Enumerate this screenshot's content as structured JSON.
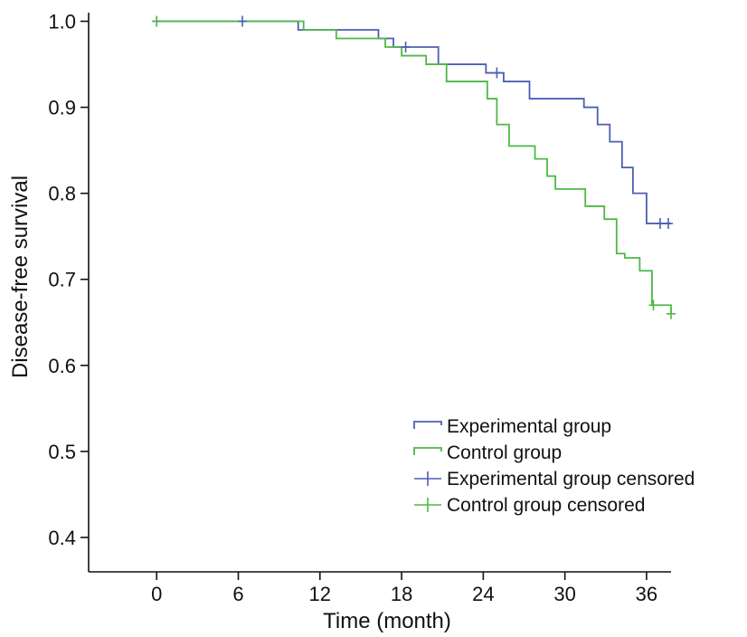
{
  "chart_data": {
    "type": "line",
    "subtype": "kaplan-meier step",
    "title": "",
    "xlabel": "Time (month)",
    "ylabel": "Disease-free survival",
    "xlim": [
      -5,
      37.8
    ],
    "ylim": [
      0.36,
      1.01
    ],
    "xticks": [
      0,
      6,
      12,
      18,
      24,
      30,
      36
    ],
    "yticks": [
      0.4,
      0.5,
      0.6,
      0.7,
      0.8,
      0.9,
      1.0
    ],
    "xtick_labels": [
      "0",
      "6",
      "12",
      "18",
      "24",
      "30",
      "36"
    ],
    "ytick_labels": [
      "0.4",
      "0.5",
      "0.6",
      "0.7",
      "0.8",
      "0.9",
      "1.0"
    ],
    "grid": false,
    "legend_position": "bottom-right",
    "series": [
      {
        "name": "Experimental group",
        "color": "#4c5fb5",
        "x": [
          0,
          10.4,
          16.3,
          17.4,
          20.7,
          24.2,
          25.5,
          27.4,
          31.4,
          32.4,
          33.3,
          34.2,
          35.0,
          36.0,
          37.8
        ],
        "y": [
          1.0,
          0.99,
          0.98,
          0.97,
          0.95,
          0.94,
          0.93,
          0.91,
          0.9,
          0.88,
          0.86,
          0.83,
          0.8,
          0.765,
          0.765
        ],
        "censored": {
          "x": [
            0,
            6.3,
            18.3,
            25.0,
            37.0,
            37.6
          ],
          "y": [
            1.0,
            1.0,
            0.97,
            0.94,
            0.765,
            0.765
          ]
        }
      },
      {
        "name": "Control group",
        "color": "#4fb848",
        "x": [
          0,
          10.8,
          13.2,
          16.8,
          18.0,
          19.8,
          21.3,
          24.3,
          25.0,
          25.9,
          27.8,
          28.7,
          29.3,
          31.5,
          32.9,
          33.8,
          34.4,
          35.5,
          36.4,
          37.8
        ],
        "y": [
          1.0,
          0.99,
          0.98,
          0.97,
          0.96,
          0.95,
          0.93,
          0.91,
          0.88,
          0.855,
          0.84,
          0.82,
          0.805,
          0.785,
          0.77,
          0.73,
          0.725,
          0.71,
          0.67,
          0.66
        ],
        "censored": {
          "x": [
            0,
            36.5,
            37.8
          ],
          "y": [
            1.0,
            0.67,
            0.66
          ]
        }
      }
    ],
    "legend_entries": [
      {
        "label": "Experimental group",
        "kind": "line",
        "series": 0
      },
      {
        "label": "Control group",
        "kind": "line",
        "series": 1
      },
      {
        "label": "Experimental group censored",
        "kind": "censor",
        "series": 0
      },
      {
        "label": "Control group censored",
        "kind": "censor",
        "series": 1
      }
    ]
  }
}
